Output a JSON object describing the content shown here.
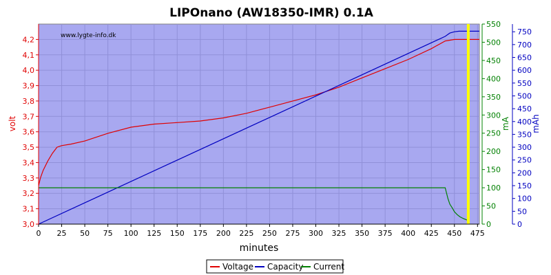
{
  "chart_data": {
    "type": "line",
    "title": "LIPOnano (AW18350-IMR) 0.1A",
    "watermark": "www.lygte-info.dk",
    "xlabel": "minutes",
    "xlim": [
      0,
      477
    ],
    "xticks": [
      0,
      25,
      50,
      75,
      100,
      125,
      150,
      175,
      200,
      225,
      250,
      275,
      300,
      325,
      350,
      375,
      400,
      425,
      450,
      475
    ],
    "grid": true,
    "legend_position": "bottom-center",
    "axes": {
      "left": {
        "label": "volt",
        "lim": [
          3.0,
          4.3
        ],
        "ticks": [
          "3,0",
          "3,1",
          "3,2",
          "3,3",
          "3,4",
          "3,5",
          "3,6",
          "3,7",
          "3,8",
          "3,9",
          "4,0",
          "4,1",
          "4,2"
        ],
        "color": "#e00000"
      },
      "right1": {
        "label": "mA",
        "lim": [
          0,
          550
        ],
        "ticks": [
          "0",
          "50",
          "100",
          "150",
          "200",
          "250",
          "300",
          "350",
          "400",
          "450",
          "500",
          "550"
        ],
        "color": "#008000"
      },
      "right2": {
        "label": "mAh",
        "lim": [
          0,
          780
        ],
        "ticks": [
          "0",
          "50",
          "100",
          "150",
          "200",
          "250",
          "300",
          "350",
          "400",
          "450",
          "500",
          "550",
          "600",
          "650",
          "700",
          "750"
        ],
        "color": "#0000c0"
      }
    },
    "marker": {
      "x": 465,
      "color": "#ffff00"
    },
    "series": [
      {
        "name": "Voltage",
        "axis": "left",
        "color": "#e00000",
        "x": [
          0,
          2,
          5,
          10,
          15,
          20,
          25,
          35,
          50,
          75,
          100,
          125,
          150,
          175,
          200,
          225,
          250,
          275,
          300,
          325,
          350,
          375,
          400,
          425,
          440,
          450,
          460,
          470,
          477
        ],
        "y": [
          3.25,
          3.3,
          3.35,
          3.41,
          3.46,
          3.5,
          3.51,
          3.52,
          3.54,
          3.59,
          3.63,
          3.65,
          3.66,
          3.67,
          3.69,
          3.72,
          3.76,
          3.8,
          3.84,
          3.89,
          3.95,
          4.01,
          4.07,
          4.14,
          4.19,
          4.2,
          4.2,
          4.2,
          4.2
        ]
      },
      {
        "name": "Capacity",
        "axis": "right2",
        "color": "#0000c0",
        "x": [
          0,
          440,
          445,
          450,
          455,
          460,
          477
        ],
        "y": [
          0,
          732,
          745,
          750,
          752,
          752,
          752
        ]
      },
      {
        "name": "Current",
        "axis": "right1",
        "color": "#008000",
        "x": [
          0,
          440,
          441,
          443,
          445,
          448,
          450,
          453,
          456,
          460,
          463,
          465,
          466
        ],
        "y": [
          100,
          100,
          90,
          70,
          55,
          43,
          34,
          26,
          20,
          15,
          12,
          10,
          0
        ]
      }
    ]
  }
}
